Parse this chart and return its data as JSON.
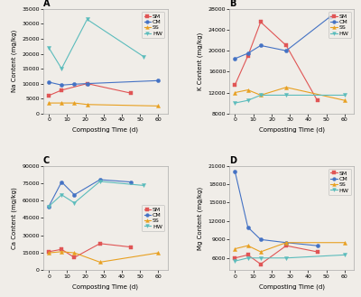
{
  "colors": {
    "SM": "#e05555",
    "CM": "#4472c4",
    "SS": "#e8a020",
    "HW": "#5bbcbc"
  },
  "markers": {
    "SM": "s",
    "CM": "o",
    "SS": "^",
    "HW": "v"
  },
  "bg_color": "#f0ede8",
  "A": {
    "title": "A",
    "ylabel": "Na Content (mg/kg)",
    "xlabel": "Composting Time (d)",
    "ylim": [
      0,
      35000
    ],
    "yticks": [
      0,
      5000,
      10000,
      15000,
      20000,
      25000,
      30000,
      35000
    ],
    "SM": {
      "x": [
        0,
        7,
        21,
        45
      ],
      "y": [
        6000,
        7800,
        10000,
        6800
      ]
    },
    "CM": {
      "x": [
        0,
        7,
        14,
        21,
        60
      ],
      "y": [
        10500,
        9500,
        9800,
        10000,
        11000
      ]
    },
    "SS": {
      "x": [
        0,
        7,
        14,
        21,
        60
      ],
      "y": [
        3500,
        3500,
        3500,
        3000,
        2500
      ]
    },
    "HW": {
      "x": [
        0,
        7,
        21,
        52
      ],
      "y": [
        22000,
        15000,
        31500,
        19000
      ]
    },
    "legend_loc": "upper right"
  },
  "B": {
    "title": "B",
    "ylabel": "K Content (mg/kg)",
    "xlabel": "Composting Time (d)",
    "ylim": [
      8000,
      28000
    ],
    "yticks": [
      8000,
      12000,
      16000,
      20000,
      24000,
      28000
    ],
    "SM": {
      "x": [
        0,
        7,
        14,
        28,
        45,
        60
      ],
      "y": [
        13500,
        19000,
        25500,
        21000,
        10500,
        null
      ]
    },
    "CM": {
      "x": [
        0,
        7,
        14,
        28,
        52
      ],
      "y": [
        18500,
        19500,
        21000,
        20000,
        26500
      ]
    },
    "SS": {
      "x": [
        0,
        7,
        14,
        28,
        60
      ],
      "y": [
        12000,
        12500,
        11500,
        13000,
        10500
      ]
    },
    "HW": {
      "x": [
        0,
        7,
        14,
        28,
        60
      ],
      "y": [
        10000,
        10500,
        11500,
        11500,
        11500
      ]
    },
    "legend_loc": "upper right"
  },
  "C": {
    "title": "C",
    "ylabel": "Ca Content (mg/kg)",
    "xlabel": "Composting Time (d)",
    "ylim": [
      0,
      90000
    ],
    "yticks": [
      0,
      15000,
      30000,
      45000,
      60000,
      75000,
      90000
    ],
    "SM": {
      "x": [
        0,
        7,
        14,
        28,
        45
      ],
      "y": [
        16000,
        18000,
        11000,
        23000,
        20000
      ]
    },
    "CM": {
      "x": [
        0,
        7,
        14,
        28,
        45
      ],
      "y": [
        55000,
        76000,
        65000,
        78000,
        76000
      ]
    },
    "SS": {
      "x": [
        0,
        7,
        14,
        28,
        60
      ],
      "y": [
        15000,
        16000,
        15000,
        7000,
        15000
      ]
    },
    "HW": {
      "x": [
        0,
        7,
        14,
        28,
        52
      ],
      "y": [
        55000,
        65000,
        58000,
        76500,
        73000
      ]
    },
    "legend_loc": "center right"
  },
  "D": {
    "title": "D",
    "ylabel": "Mg Content (mg/kg)",
    "xlabel": "Composting Time (d)",
    "ylim": [
      4000,
      21000
    ],
    "yticks": [
      6000,
      9000,
      12000,
      15000,
      18000,
      21000
    ],
    "SM": {
      "x": [
        0,
        7,
        14,
        28,
        45
      ],
      "y": [
        6000,
        6500,
        5000,
        8000,
        7000
      ]
    },
    "CM": {
      "x": [
        0,
        7,
        14,
        28,
        45
      ],
      "y": [
        20000,
        11000,
        9000,
        8500,
        8000
      ]
    },
    "SS": {
      "x": [
        0,
        7,
        14,
        28,
        60
      ],
      "y": [
        7500,
        8000,
        7000,
        8500,
        8500
      ]
    },
    "HW": {
      "x": [
        0,
        7,
        14,
        28,
        60
      ],
      "y": [
        5500,
        6000,
        6000,
        6000,
        6500
      ]
    },
    "legend_loc": "upper right"
  }
}
